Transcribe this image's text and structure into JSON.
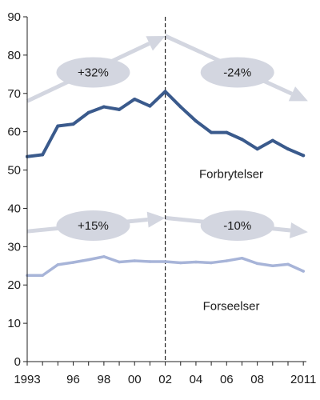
{
  "chart_data": {
    "type": "line",
    "x": [
      1993,
      1994,
      1995,
      1996,
      1997,
      1998,
      1999,
      2000,
      2001,
      2002,
      2003,
      2004,
      2005,
      2006,
      2007,
      2008,
      2009,
      2010,
      2011
    ],
    "ylim": [
      0,
      90
    ],
    "y_ticks": [
      0,
      10,
      20,
      30,
      40,
      50,
      60,
      70,
      80,
      90
    ],
    "x_ticks": [
      {
        "x": 1993,
        "label": "1993"
      },
      {
        "x": 1996,
        "label": "96"
      },
      {
        "x": 1998,
        "label": "98"
      },
      {
        "x": 2000,
        "label": "00"
      },
      {
        "x": 2002,
        "label": "02"
      },
      {
        "x": 2004,
        "label": "04"
      },
      {
        "x": 2006,
        "label": "06"
      },
      {
        "x": 2008,
        "label": "08"
      },
      {
        "x": 2011,
        "label": "2011"
      }
    ],
    "grid": false,
    "reference_line": {
      "x": 2002,
      "style": "dashed"
    },
    "series": [
      {
        "name": "Forbrytelser",
        "color": "#3a5a8c",
        "values": [
          53.5,
          54,
          61.5,
          62,
          65,
          66.5,
          65.8,
          68.5,
          66.7,
          70.5,
          66.5,
          62.8,
          59.8,
          59.8,
          58,
          55.5,
          57.7,
          55.5,
          53.8
        ]
      },
      {
        "name": "Forseelser",
        "color": "#a7b4d8",
        "values": [
          22.5,
          22.5,
          25.3,
          25.9,
          26.6,
          27.4,
          26,
          26.3,
          26.1,
          26.1,
          25.8,
          26,
          25.8,
          26.3,
          27,
          25.6,
          25,
          25.4,
          23.6
        ]
      }
    ],
    "annotations": [
      {
        "text": "+32%",
        "arrow_color": "#d3d6e0",
        "ellipse_color": "#d3d6e0",
        "from": {
          "x": 1993,
          "y": 68
        },
        "to": {
          "x": 2002,
          "y": 85
        },
        "label_at": {
          "x": 1997.3,
          "y": 75.5
        }
      },
      {
        "text": "-24%",
        "arrow_color": "#d3d6e0",
        "ellipse_color": "#d3d6e0",
        "from": {
          "x": 2002,
          "y": 85
        },
        "to": {
          "x": 2011.3,
          "y": 68
        },
        "label_at": {
          "x": 2006.7,
          "y": 75.5
        }
      },
      {
        "text": "+15%",
        "arrow_color": "#d3d6e0",
        "ellipse_color": "#d3d6e0",
        "from": {
          "x": 1993,
          "y": 34
        },
        "to": {
          "x": 2002,
          "y": 37.5
        },
        "label_at": {
          "x": 1997.3,
          "y": 35.5
        }
      },
      {
        "text": "-10%",
        "arrow_color": "#d3d6e0",
        "ellipse_color": "#d3d6e0",
        "from": {
          "x": 2002,
          "y": 37.5
        },
        "to": {
          "x": 2011.3,
          "y": 33.8
        },
        "label_at": {
          "x": 2006.7,
          "y": 35.5
        }
      }
    ],
    "series_labels": [
      {
        "text": "Forbrytelser",
        "x": 2006.3,
        "y": 49
      },
      {
        "text": "Forseelser",
        "x": 2006.3,
        "y": 14.5
      }
    ]
  }
}
